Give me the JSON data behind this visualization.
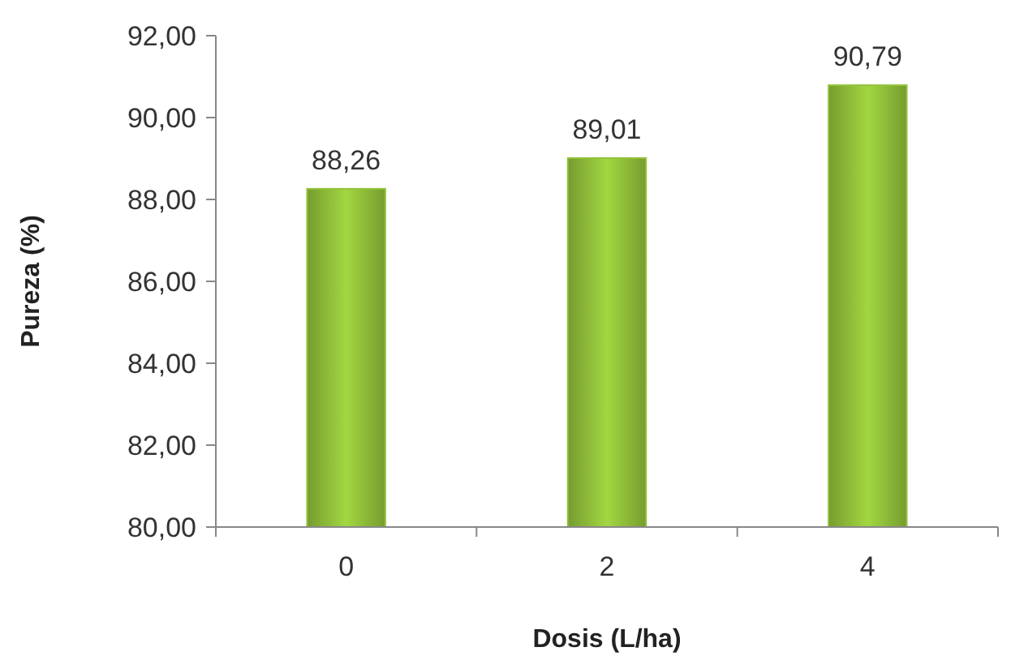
{
  "chart_data": {
    "type": "bar",
    "xlabel": "Dosis (L/ha)",
    "ylabel": "Pureza (%)",
    "categories": [
      "0",
      "2",
      "4"
    ],
    "series": [
      {
        "color": "#92c13a",
        "values": [
          88.26,
          89.01,
          90.79
        ],
        "value_labels": [
          "88,26",
          "89,01",
          "90,79"
        ]
      }
    ],
    "ylim": [
      80,
      92
    ],
    "yticks": [
      {
        "value": 80,
        "label": "80,00"
      },
      {
        "value": 82,
        "label": "82,00"
      },
      {
        "value": 84,
        "label": "84,00"
      },
      {
        "value": 86,
        "label": "86,00"
      },
      {
        "value": 88,
        "label": "88,00"
      },
      {
        "value": 90,
        "label": "90,00"
      },
      {
        "value": 92,
        "label": "92,00"
      }
    ],
    "grid": false
  }
}
